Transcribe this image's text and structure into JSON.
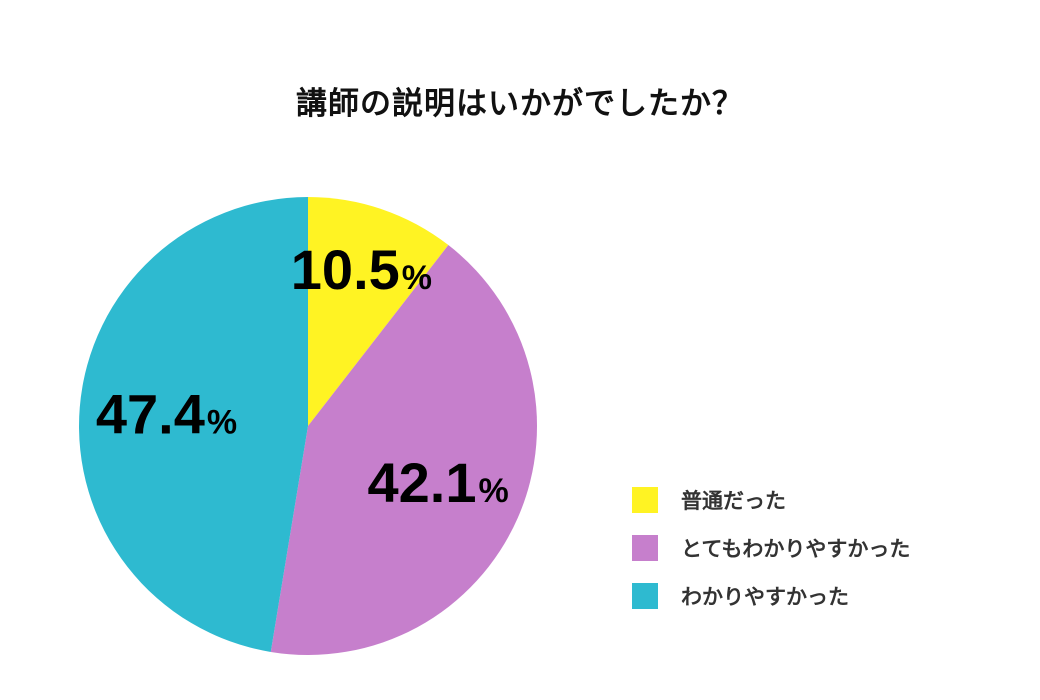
{
  "chart_data": {
    "type": "pie",
    "title": "講師の説明はいかがでしたか？",
    "unit": "%",
    "legend_position": "bottom-right",
    "slices": [
      {
        "label": "普通だった",
        "value": 10.5,
        "display": "10.5",
        "color": "#fff323"
      },
      {
        "label": "とてもわかりやすかった",
        "value": 42.1,
        "display": "42.1",
        "color": "#c67fcc"
      },
      {
        "label": "わかりやすかった",
        "value": 47.4,
        "display": "47.4",
        "color": "#2ebad0"
      }
    ]
  }
}
